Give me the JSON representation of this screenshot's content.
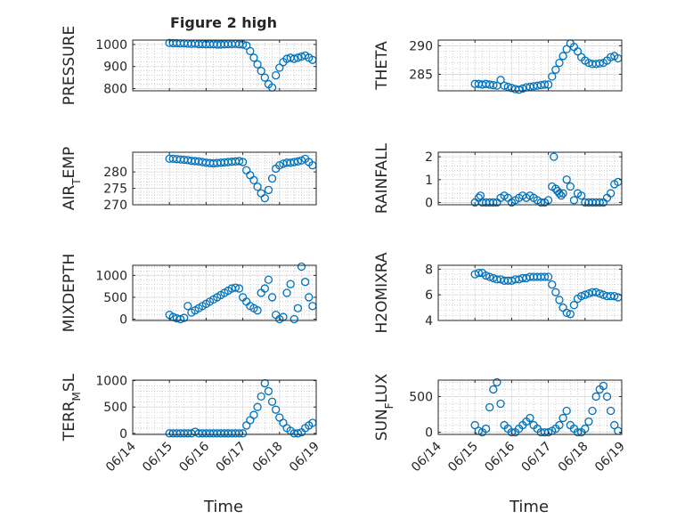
{
  "figure": {
    "title": "Figure 2 high",
    "xlabel": "Time",
    "xticks": [
      "06/14",
      "06/15",
      "06/16",
      "06/17",
      "06/18",
      "06/19"
    ],
    "colors": {
      "marker": "#0072bd",
      "axis": "#262626",
      "grid": "#b3b3b3"
    }
  },
  "chart_data": [
    {
      "type": "scatter",
      "ylabel": "PRESSURE",
      "ylim": [
        790,
        1020
      ],
      "yticks": [
        800,
        900,
        1000
      ],
      "xlim": [
        0,
        5
      ],
      "grid": true,
      "x": [
        1.0,
        1.1,
        1.2,
        1.3,
        1.4,
        1.5,
        1.6,
        1.7,
        1.8,
        1.9,
        2.0,
        2.1,
        2.2,
        2.3,
        2.4,
        2.5,
        2.6,
        2.7,
        2.8,
        2.9,
        3.0,
        3.1,
        3.2,
        3.3,
        3.4,
        3.5,
        3.6,
        3.7,
        3.8,
        3.9,
        4.0,
        4.1,
        4.2,
        4.3,
        4.4,
        4.5,
        4.6,
        4.7,
        4.8,
        4.9
      ],
      "y": [
        1007,
        1006,
        1006,
        1005,
        1005,
        1004,
        1003,
        1004,
        1002,
        1002,
        1001,
        1001,
        1001,
        1000,
        1000,
        1001,
        1002,
        1002,
        1003,
        1001,
        1000,
        995,
        970,
        940,
        910,
        880,
        850,
        820,
        805,
        860,
        895,
        920,
        935,
        940,
        935,
        940,
        945,
        950,
        940,
        930
      ]
    },
    {
      "type": "scatter",
      "ylabel": "THETA",
      "ylim": [
        282.1,
        291
      ],
      "yticks": [
        285,
        290
      ],
      "xlim": [
        0,
        5
      ],
      "grid": true,
      "x": [
        1.0,
        1.1,
        1.2,
        1.3,
        1.4,
        1.5,
        1.6,
        1.7,
        1.8,
        1.9,
        2.0,
        2.1,
        2.2,
        2.3,
        2.4,
        2.5,
        2.6,
        2.7,
        2.8,
        2.9,
        3.0,
        3.1,
        3.2,
        3.3,
        3.4,
        3.5,
        3.6,
        3.7,
        3.8,
        3.9,
        4.0,
        4.1,
        4.2,
        4.3,
        4.4,
        4.5,
        4.6,
        4.7,
        4.8,
        4.9
      ],
      "y": [
        283.3,
        283.3,
        283.2,
        283.3,
        283.2,
        283.1,
        283.0,
        284.0,
        283.0,
        282.8,
        282.6,
        282.4,
        282.3,
        282.5,
        282.7,
        282.8,
        282.9,
        283.0,
        283.1,
        283.2,
        283.2,
        284.6,
        285.8,
        287.0,
        288.2,
        289.4,
        290.4,
        289.8,
        289.0,
        288.0,
        287.4,
        287.0,
        286.8,
        286.8,
        286.9,
        287.0,
        287.4,
        288.0,
        288.2,
        287.8
      ]
    },
    {
      "type": "scatter",
      "ylabel": "AIR_TEMP",
      "ylim": [
        270,
        286
      ],
      "yticks": [
        270,
        275,
        280
      ],
      "xlim": [
        0,
        5
      ],
      "grid": true,
      "x": [
        1.0,
        1.1,
        1.2,
        1.3,
        1.4,
        1.5,
        1.6,
        1.7,
        1.8,
        1.9,
        2.0,
        2.1,
        2.2,
        2.3,
        2.4,
        2.5,
        2.6,
        2.7,
        2.8,
        2.9,
        3.0,
        3.1,
        3.2,
        3.3,
        3.4,
        3.5,
        3.6,
        3.7,
        3.8,
        3.9,
        4.0,
        4.1,
        4.2,
        4.3,
        4.4,
        4.5,
        4.6,
        4.7,
        4.8,
        4.9
      ],
      "y": [
        284.0,
        284.0,
        283.9,
        283.8,
        283.7,
        283.6,
        283.4,
        283.3,
        283.2,
        283.0,
        282.8,
        282.7,
        282.6,
        282.7,
        282.8,
        282.9,
        283.0,
        283.1,
        283.2,
        283.3,
        283.0,
        280.5,
        279.0,
        277.5,
        275.5,
        273.5,
        272.0,
        274.5,
        278.0,
        281.0,
        282.0,
        282.5,
        282.8,
        282.8,
        283.0,
        283.2,
        283.5,
        284.0,
        283.0,
        282.0
      ]
    },
    {
      "type": "scatter",
      "ylabel": "RAINFALL",
      "ylim": [
        -0.1,
        2.2
      ],
      "yticks": [
        0,
        1,
        2
      ],
      "xlim": [
        0,
        5
      ],
      "grid": true,
      "x": [
        1.0,
        1.1,
        1.15,
        1.2,
        1.3,
        1.4,
        1.5,
        1.6,
        1.7,
        1.8,
        1.9,
        2.0,
        2.1,
        2.2,
        2.3,
        2.4,
        2.5,
        2.6,
        2.7,
        2.8,
        2.9,
        3.0,
        3.1,
        3.15,
        3.2,
        3.25,
        3.3,
        3.35,
        3.4,
        3.5,
        3.6,
        3.7,
        3.8,
        3.9,
        4.0,
        4.1,
        4.2,
        4.3,
        4.4,
        4.5,
        4.6,
        4.7,
        4.8,
        4.9
      ],
      "y": [
        0,
        0.2,
        0.3,
        0,
        0,
        0,
        0,
        0,
        0.2,
        0.3,
        0.2,
        0,
        0.1,
        0.2,
        0.3,
        0.2,
        0.3,
        0.2,
        0.1,
        0,
        0,
        0.1,
        0.7,
        2.0,
        0.6,
        0.5,
        0.4,
        0.3,
        0.4,
        1.0,
        0.7,
        0.1,
        0.4,
        0.3,
        0,
        0,
        0,
        0,
        0,
        0,
        0.2,
        0.4,
        0.8,
        0.9
      ]
    },
    {
      "type": "scatter",
      "ylabel": "MIXDEPTH",
      "ylim": [
        -30,
        1230
      ],
      "yticks": [
        0,
        500,
        1000
      ],
      "xlim": [
        0,
        5
      ],
      "grid": true,
      "x": [
        1.0,
        1.1,
        1.2,
        1.3,
        1.4,
        1.5,
        1.6,
        1.7,
        1.8,
        1.9,
        2.0,
        2.1,
        2.2,
        2.3,
        2.4,
        2.5,
        2.6,
        2.7,
        2.8,
        2.9,
        3.0,
        3.1,
        3.2,
        3.3,
        3.4,
        3.5,
        3.6,
        3.7,
        3.8,
        3.9,
        4.0,
        4.1,
        4.2,
        4.3,
        4.4,
        4.5,
        4.6,
        4.7,
        4.8,
        4.9
      ],
      "y": [
        100,
        50,
        20,
        0,
        30,
        300,
        150,
        200,
        250,
        300,
        350,
        400,
        450,
        500,
        550,
        600,
        650,
        700,
        720,
        700,
        500,
        400,
        300,
        250,
        200,
        600,
        700,
        900,
        500,
        100,
        0,
        50,
        600,
        800,
        0,
        250,
        1200,
        850,
        500,
        300
      ]
    },
    {
      "type": "scatter",
      "ylabel": "H2OMIXRA",
      "ylim": [
        4,
        8.3
      ],
      "yticks": [
        4,
        6,
        8
      ],
      "xlim": [
        0,
        5
      ],
      "grid": true,
      "x": [
        1.0,
        1.1,
        1.2,
        1.3,
        1.4,
        1.5,
        1.6,
        1.7,
        1.8,
        1.9,
        2.0,
        2.1,
        2.2,
        2.3,
        2.4,
        2.5,
        2.6,
        2.7,
        2.8,
        2.9,
        3.0,
        3.1,
        3.2,
        3.3,
        3.4,
        3.5,
        3.6,
        3.7,
        3.8,
        3.9,
        4.0,
        4.1,
        4.2,
        4.3,
        4.4,
        4.5,
        4.6,
        4.7,
        4.8,
        4.9
      ],
      "y": [
        7.6,
        7.7,
        7.7,
        7.5,
        7.4,
        7.3,
        7.2,
        7.2,
        7.1,
        7.1,
        7.1,
        7.2,
        7.2,
        7.3,
        7.3,
        7.4,
        7.4,
        7.4,
        7.4,
        7.4,
        7.4,
        6.8,
        6.2,
        5.6,
        5.0,
        4.6,
        4.5,
        5.2,
        5.7,
        5.9,
        6.0,
        6.1,
        6.2,
        6.2,
        6.1,
        6.0,
        5.9,
        5.9,
        5.9,
        5.8
      ]
    },
    {
      "type": "scatter",
      "ylabel": "TERR_MSL",
      "ylim": [
        -20,
        1010
      ],
      "yticks": [
        0,
        500,
        1000
      ],
      "xlim": [
        0,
        5
      ],
      "grid": true,
      "x": [
        1.0,
        1.1,
        1.2,
        1.3,
        1.4,
        1.5,
        1.6,
        1.7,
        1.8,
        1.9,
        2.0,
        2.1,
        2.2,
        2.3,
        2.4,
        2.5,
        2.6,
        2.7,
        2.8,
        2.9,
        3.0,
        3.1,
        3.2,
        3.3,
        3.4,
        3.5,
        3.6,
        3.7,
        3.8,
        3.9,
        4.0,
        4.1,
        4.2,
        4.3,
        4.4,
        4.5,
        4.6,
        4.7,
        4.8,
        4.9
      ],
      "y": [
        0,
        0,
        0,
        0,
        0,
        0,
        0,
        30,
        0,
        0,
        0,
        0,
        0,
        0,
        0,
        0,
        0,
        0,
        0,
        0,
        0,
        150,
        250,
        350,
        500,
        700,
        950,
        800,
        600,
        450,
        300,
        200,
        100,
        50,
        0,
        0,
        20,
        100,
        150,
        200
      ]
    },
    {
      "type": "scatter",
      "ylabel": "SUN_FLUX",
      "ylim": [
        -30,
        730
      ],
      "yticks": [
        0,
        500
      ],
      "xlim": [
        0,
        5
      ],
      "grid": true,
      "x": [
        1.0,
        1.1,
        1.2,
        1.3,
        1.4,
        1.5,
        1.6,
        1.7,
        1.8,
        1.9,
        2.0,
        2.1,
        2.2,
        2.3,
        2.4,
        2.5,
        2.6,
        2.7,
        2.8,
        2.9,
        3.0,
        3.1,
        3.2,
        3.3,
        3.4,
        3.5,
        3.6,
        3.7,
        3.8,
        3.9,
        4.0,
        4.1,
        4.2,
        4.3,
        4.4,
        4.5,
        4.6,
        4.7,
        4.8,
        4.9
      ],
      "y": [
        100,
        20,
        0,
        50,
        350,
        600,
        700,
        400,
        100,
        50,
        0,
        0,
        50,
        100,
        150,
        200,
        100,
        50,
        0,
        0,
        0,
        20,
        50,
        100,
        200,
        300,
        100,
        50,
        0,
        0,
        50,
        150,
        300,
        500,
        600,
        650,
        500,
        300,
        100,
        20
      ]
    }
  ]
}
